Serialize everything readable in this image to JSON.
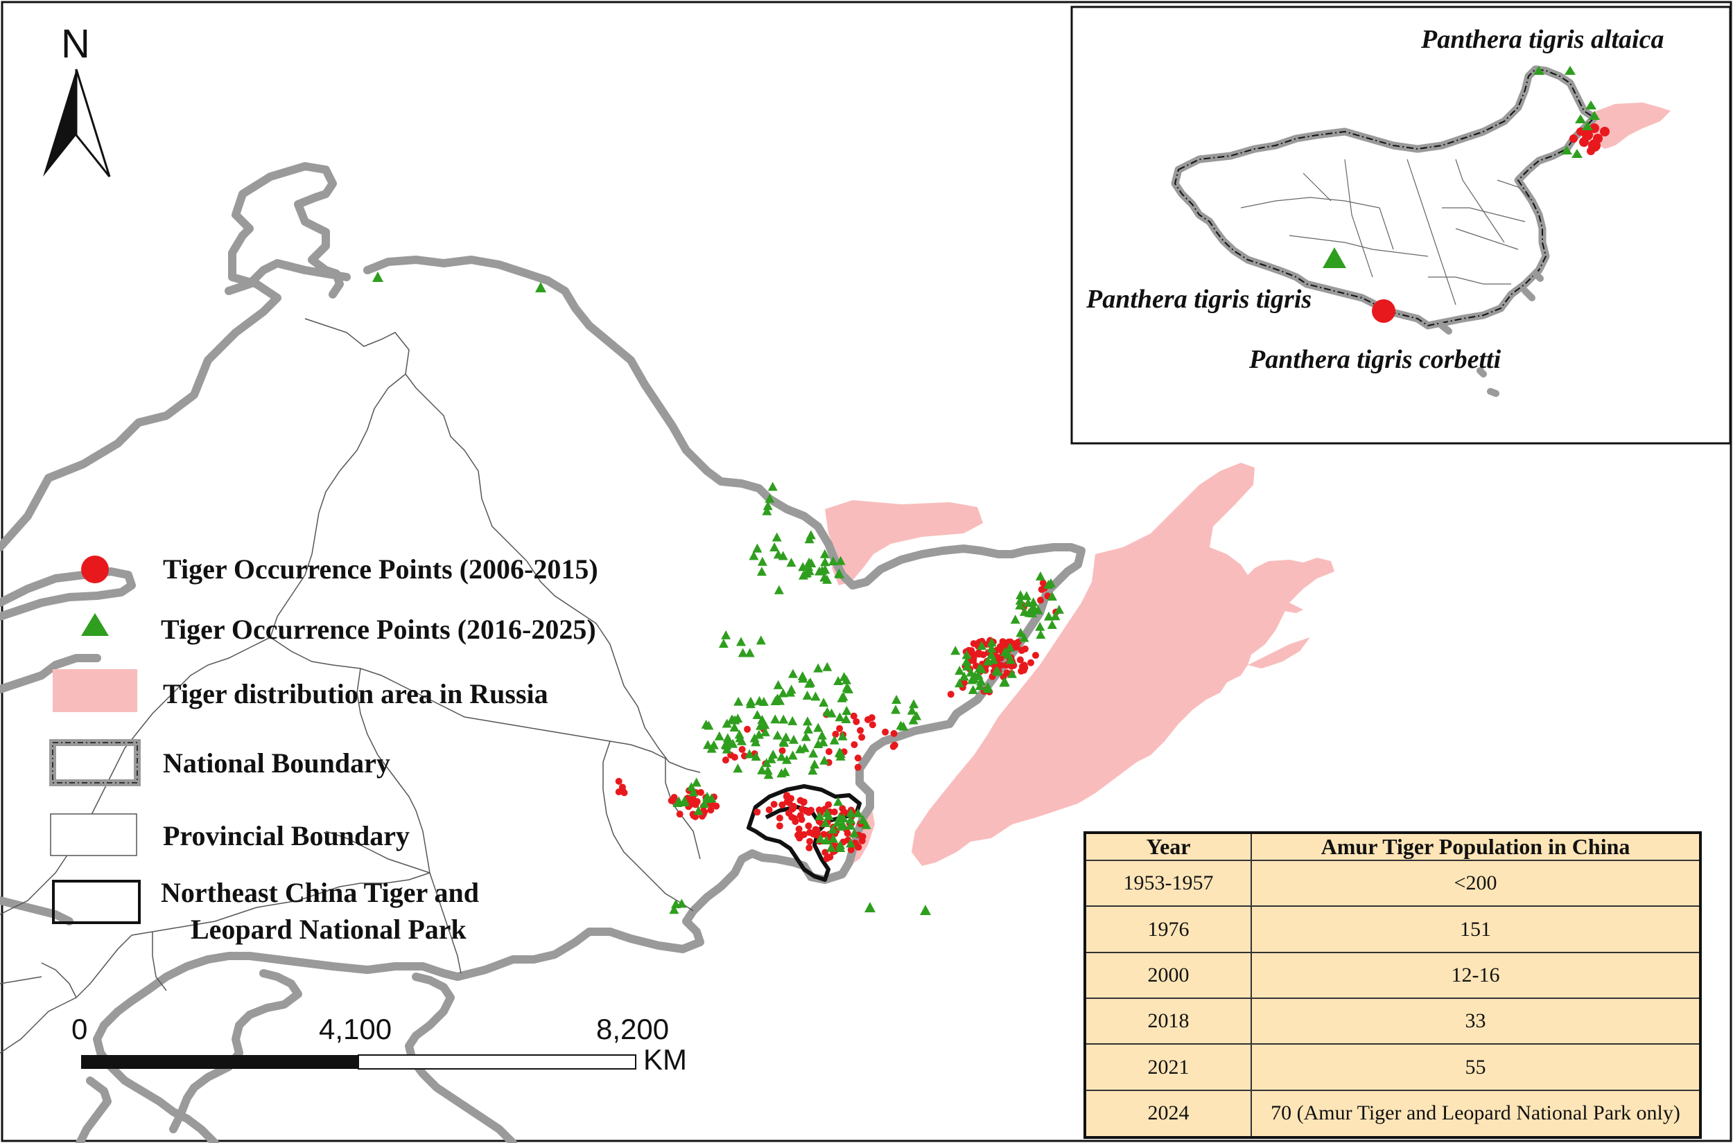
{
  "north_label": "N",
  "legend": {
    "occ_2006": "Tiger Occurrence Points (2006-2015)",
    "occ_2016": "Tiger Occurrence Points (2016-2025)",
    "russia_area": "Tiger distribution area in Russia",
    "national_boundary": "National Boundary",
    "provincial_boundary": "Provincial Boundary",
    "park_line1": "Northeast China Tiger and",
    "park_line2": "Leopard National Park"
  },
  "inset": {
    "altaica": "Panthera tigris altaica",
    "tigris": "Panthera tigris tigris",
    "corbetti": "Panthera tigris corbetti"
  },
  "scale_bar": {
    "ticks": [
      "0",
      "4,100",
      "8,200"
    ],
    "unit": "KM"
  },
  "colors": {
    "occ_2006": "#e8191d",
    "occ_2016": "#2f9e1e",
    "russia_area": "#f9bcbc",
    "national_boundary": "#9a9a9a",
    "table_bg": "#fde5b7"
  },
  "population_table": {
    "headers": [
      "Year",
      "Amur Tiger Population in China"
    ],
    "rows": [
      {
        "year": "1953-1957",
        "population": "<200"
      },
      {
        "year": "1976",
        "population": "151"
      },
      {
        "year": "2000",
        "population": "12-16"
      },
      {
        "year": "2018",
        "population": "33"
      },
      {
        "year": "2021",
        "population": "55"
      },
      {
        "year": "2024",
        "population": "70 (Amur Tiger and Leopard National Park only)"
      }
    ]
  }
}
